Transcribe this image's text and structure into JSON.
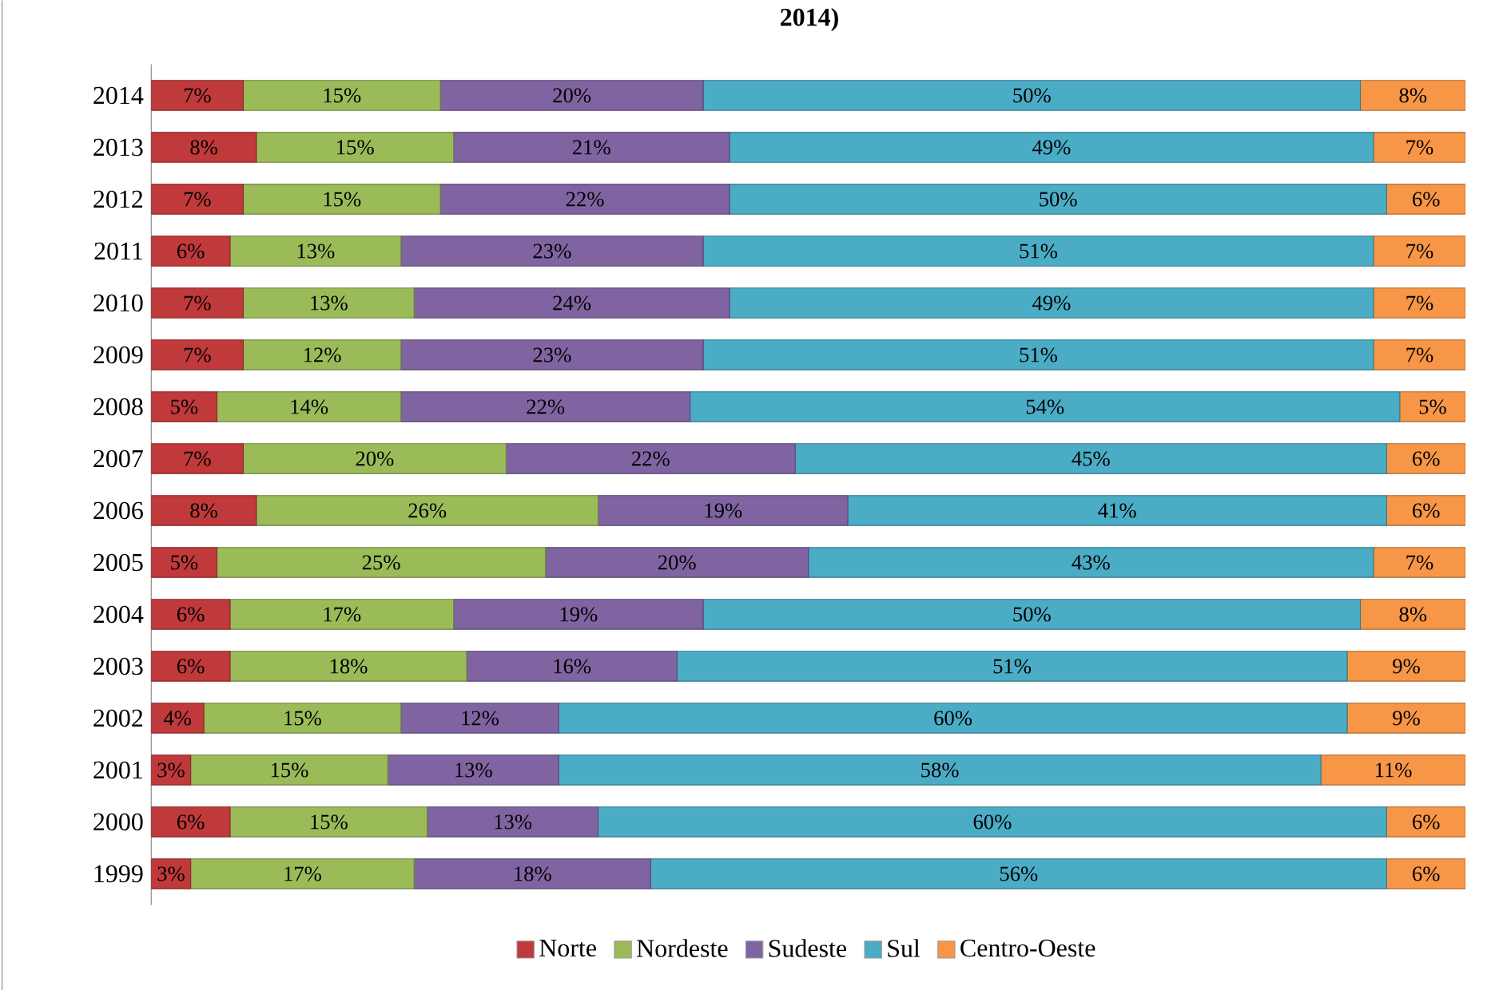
{
  "chart_data": {
    "type": "bar",
    "orientation": "horizontal",
    "stacked": true,
    "title": "2014)",
    "categories": [
      "2014",
      "2013",
      "2012",
      "2011",
      "2010",
      "2009",
      "2008",
      "2007",
      "2006",
      "2005",
      "2004",
      "2003",
      "2002",
      "2001",
      "2000",
      "1999"
    ],
    "tick_labels": "y",
    "legend": "bottom",
    "series": [
      {
        "name": "Norte",
        "color": "#c0393b",
        "values": [
          7,
          8,
          7,
          6,
          7,
          7,
          5,
          7,
          8,
          5,
          6,
          6,
          4,
          3,
          6,
          3
        ],
        "value_labels": [
          "7%",
          "8%",
          "7%",
          "6%",
          "7%",
          "7%",
          "5%",
          "7%",
          "8%",
          "5%",
          "6%",
          "6%",
          "4%",
          "3%",
          "6%",
          "3%"
        ]
      },
      {
        "name": "Nordeste",
        "color": "#9bbb59",
        "values": [
          15,
          15,
          15,
          13,
          13,
          12,
          14,
          20,
          26,
          25,
          17,
          18,
          15,
          15,
          15,
          17
        ],
        "value_labels": [
          "15%",
          "15%",
          "15%",
          "13%",
          "13%",
          "12%",
          "14%",
          "20%",
          "26%",
          "25%",
          "17%",
          "18%",
          "15%",
          "15%",
          "15%",
          "17%"
        ]
      },
      {
        "name": "Sudeste",
        "color": "#8064a2",
        "values": [
          20,
          21,
          22,
          23,
          24,
          23,
          22,
          22,
          19,
          20,
          19,
          16,
          12,
          13,
          13,
          18
        ],
        "value_labels": [
          "20%",
          "21%",
          "22%",
          "23%",
          "24%",
          "23%",
          "22%",
          "22%",
          "19%",
          "20%",
          "19%",
          "16%",
          "12%",
          "13%",
          "13%",
          "18%"
        ]
      },
      {
        "name": "Sul",
        "color": "#4bacc6",
        "values": [
          50,
          49,
          50,
          51,
          49,
          51,
          54,
          45,
          41,
          43,
          50,
          51,
          60,
          58,
          60,
          56
        ],
        "value_labels": [
          "50%",
          "49%",
          "50%",
          "51%",
          "49%",
          "51%",
          "54%",
          "45%",
          "41%",
          "43%",
          "50%",
          "51%",
          "60%",
          "58%",
          "60%",
          "56%"
        ]
      },
      {
        "name": "Centro-Oeste",
        "color": "#f79646",
        "values": [
          8,
          7,
          6,
          7,
          7,
          7,
          5,
          6,
          6,
          7,
          8,
          9,
          9,
          11,
          6,
          6
        ],
        "value_labels": [
          "8%",
          "7%",
          "6%",
          "7%",
          "7%",
          "7%",
          "5%",
          "6%",
          "6%",
          "7%",
          "8%",
          "9%",
          "9%",
          "11%",
          "6%",
          "6%"
        ]
      }
    ]
  }
}
